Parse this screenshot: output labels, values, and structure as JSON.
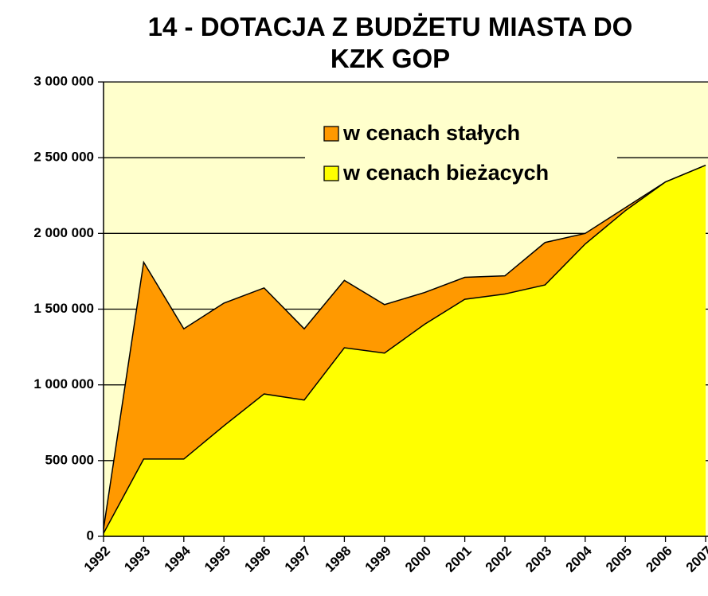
{
  "chart_data": {
    "type": "area",
    "title": "14 - DOTACJA Z BUDŻETU MIASTA DO KZK GOP",
    "categories": [
      "1992",
      "1993",
      "1994",
      "1995",
      "1996",
      "1997",
      "1998",
      "1999",
      "2000",
      "2001",
      "2002",
      "2003",
      "2004",
      "2005",
      "2006",
      "2007"
    ],
    "series": [
      {
        "name": "w cenach stałych",
        "color": "#ff9900",
        "values": [
          50000,
          1810000,
          1370000,
          1540000,
          1640000,
          1370000,
          1690000,
          1530000,
          1610000,
          1710000,
          1720000,
          1940000,
          2000000,
          2170000,
          2340000,
          2450000
        ]
      },
      {
        "name": "w cenach bieżacych",
        "color": "#ffff00",
        "values": [
          20000,
          510000,
          510000,
          730000,
          940000,
          900000,
          1245000,
          1210000,
          1400000,
          1565000,
          1600000,
          1660000,
          1930000,
          2150000,
          2340000,
          2450000
        ]
      }
    ],
    "ylim": [
      0,
      3000000
    ],
    "yticks": [
      0,
      {
        "value": 500000,
        "label": "500 000"
      },
      {
        "value": 1000000,
        "label": "1 000 000"
      },
      {
        "value": 1500000,
        "label": "1 500 000"
      },
      {
        "value": 2000000,
        "label": "2 000 000"
      },
      {
        "value": 2500000,
        "label": "2 500 000"
      },
      {
        "value": 3000000,
        "label": "3 000 000"
      }
    ],
    "grid": true,
    "plot_background": "#ffffcc",
    "legend": "top"
  }
}
